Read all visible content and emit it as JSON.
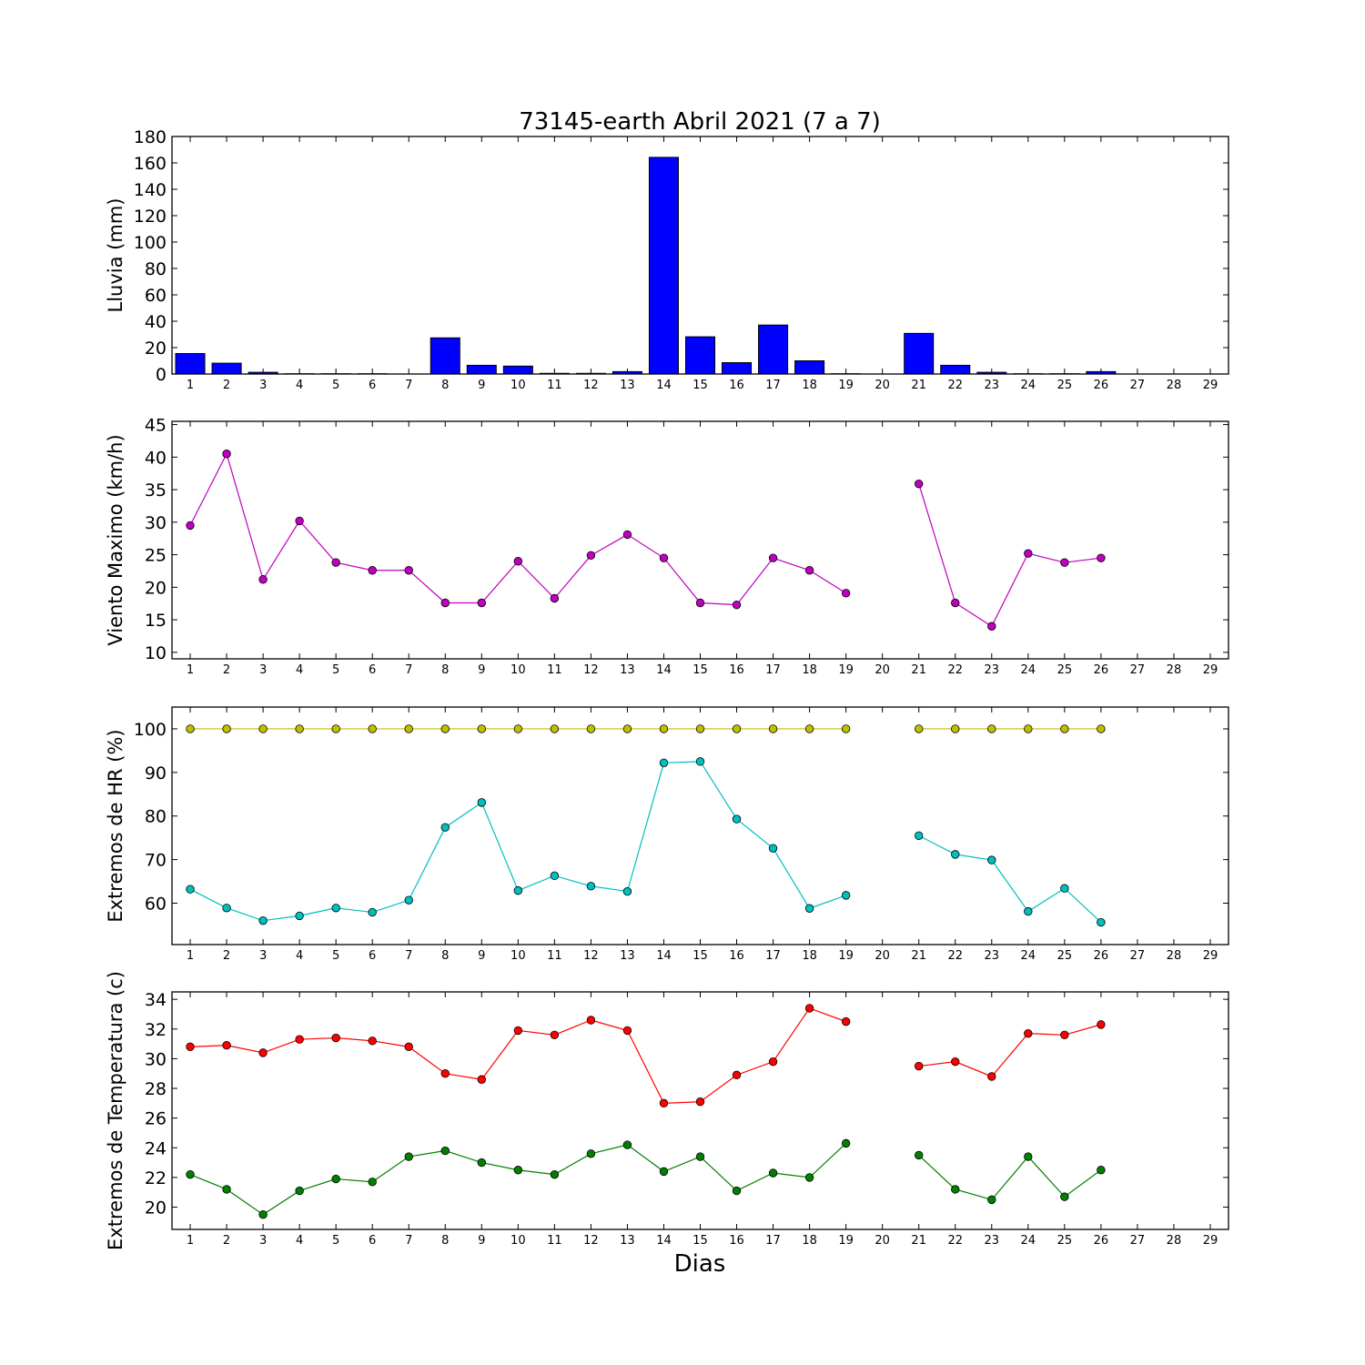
{
  "figure": {
    "title": "73145-earth Abril 2021  (7 a 7)",
    "xlabel": "Dias"
  },
  "chart_data": [
    {
      "type": "bar",
      "ylabel": "Lluvia (mm)",
      "ylim": [
        0,
        180
      ],
      "yticks": [
        0,
        20,
        40,
        60,
        80,
        100,
        120,
        140,
        160,
        180
      ],
      "xlim": [
        0.5,
        29.5
      ],
      "xticks": [
        1,
        2,
        3,
        4,
        5,
        6,
        7,
        8,
        9,
        10,
        11,
        12,
        13,
        14,
        15,
        16,
        17,
        18,
        19,
        20,
        21,
        22,
        23,
        24,
        25,
        26,
        27,
        28,
        29
      ],
      "color": "#0000ff",
      "x": [
        1,
        2,
        3,
        4,
        5,
        6,
        7,
        8,
        9,
        10,
        11,
        12,
        13,
        14,
        15,
        16,
        17,
        18,
        19,
        20,
        21,
        22,
        23,
        24,
        25,
        26,
        27,
        28,
        29
      ],
      "values": [
        15.5,
        8.2,
        1.3,
        0.2,
        0.2,
        0.2,
        0,
        27.4,
        6.6,
        6.0,
        0.5,
        0.5,
        1.8,
        164.2,
        28.2,
        8.6,
        37.1,
        10.0,
        0.2,
        0,
        30.8,
        6.6,
        1.3,
        0.2,
        0.2,
        1.8,
        0,
        0,
        0
      ],
      "grid": false
    },
    {
      "type": "line",
      "ylabel": "Viento Maximo (km/h)",
      "ylim": [
        9,
        45.5
      ],
      "yticks": [
        10,
        15,
        20,
        25,
        30,
        35,
        40,
        45
      ],
      "xlim": [
        0.5,
        29.5
      ],
      "xticks": [
        1,
        2,
        3,
        4,
        5,
        6,
        7,
        8,
        9,
        10,
        11,
        12,
        13,
        14,
        15,
        16,
        17,
        18,
        19,
        20,
        21,
        22,
        23,
        24,
        25,
        26,
        27,
        28,
        29
      ],
      "series": [
        {
          "color": "#bf00bf",
          "x": [
            1,
            2,
            3,
            4,
            5,
            6,
            7,
            8,
            9,
            10,
            11,
            12,
            13,
            14,
            15,
            16,
            17,
            18,
            19,
            20,
            21,
            22,
            23,
            24,
            25,
            26
          ],
          "values": [
            29.5,
            40.5,
            21.2,
            30.2,
            23.8,
            22.6,
            22.6,
            17.6,
            17.6,
            24.0,
            18.3,
            24.9,
            28.1,
            24.5,
            17.6,
            17.3,
            24.5,
            22.6,
            19.1,
            null,
            35.9,
            17.6,
            14.0,
            25.2,
            23.8,
            24.5
          ]
        }
      ],
      "grid": false
    },
    {
      "type": "line",
      "ylabel": "Extremos de HR (%)",
      "ylim": [
        50.5,
        105
      ],
      "yticks": [
        60,
        70,
        80,
        90,
        100
      ],
      "xlim": [
        0.5,
        29.5
      ],
      "xticks": [
        1,
        2,
        3,
        4,
        5,
        6,
        7,
        8,
        9,
        10,
        11,
        12,
        13,
        14,
        15,
        16,
        17,
        18,
        19,
        20,
        21,
        22,
        23,
        24,
        25,
        26,
        27,
        28,
        29
      ],
      "series": [
        {
          "color": "#bfbf00",
          "x": [
            1,
            2,
            3,
            4,
            5,
            6,
            7,
            8,
            9,
            10,
            11,
            12,
            13,
            14,
            15,
            16,
            17,
            18,
            19,
            20,
            21,
            22,
            23,
            24,
            25,
            26
          ],
          "values": [
            100,
            100,
            100,
            100,
            100,
            100,
            100,
            100,
            100,
            100,
            100,
            100,
            100,
            100,
            100,
            100,
            100,
            100,
            100,
            null,
            100,
            100,
            100,
            100,
            100,
            100
          ]
        },
        {
          "color": "#00bfbf",
          "x": [
            1,
            2,
            3,
            4,
            5,
            6,
            7,
            8,
            9,
            10,
            11,
            12,
            13,
            14,
            15,
            16,
            17,
            18,
            19,
            20,
            21,
            22,
            23,
            24,
            25,
            26
          ],
          "values": [
            63.2,
            58.9,
            56.0,
            57.1,
            58.9,
            57.9,
            60.7,
            77.4,
            83.1,
            62.9,
            66.3,
            63.9,
            62.7,
            92.2,
            92.5,
            79.3,
            72.6,
            58.8,
            61.8,
            null,
            75.5,
            71.2,
            69.9,
            58.1,
            63.4,
            55.6
          ]
        }
      ],
      "grid": false
    },
    {
      "type": "line",
      "ylabel": "Extremos de Temperatura (c)",
      "ylim": [
        18.5,
        34.5
      ],
      "yticks": [
        20,
        22,
        24,
        26,
        28,
        30,
        32,
        34
      ],
      "xlim": [
        0.5,
        29.5
      ],
      "xticks": [
        1,
        2,
        3,
        4,
        5,
        6,
        7,
        8,
        9,
        10,
        11,
        12,
        13,
        14,
        15,
        16,
        17,
        18,
        19,
        20,
        21,
        22,
        23,
        24,
        25,
        26,
        27,
        28,
        29
      ],
      "series": [
        {
          "color": "#ff0000",
          "x": [
            1,
            2,
            3,
            4,
            5,
            6,
            7,
            8,
            9,
            10,
            11,
            12,
            13,
            14,
            15,
            16,
            17,
            18,
            19,
            20,
            21,
            22,
            23,
            24,
            25,
            26
          ],
          "values": [
            30.8,
            30.9,
            30.4,
            31.3,
            31.4,
            31.2,
            30.8,
            29.0,
            28.6,
            31.9,
            31.6,
            32.6,
            31.9,
            27.0,
            27.1,
            28.9,
            29.8,
            33.4,
            32.5,
            null,
            29.5,
            29.8,
            28.8,
            31.7,
            31.6,
            32.3
          ]
        },
        {
          "color": "#008000",
          "x": [
            1,
            2,
            3,
            4,
            5,
            6,
            7,
            8,
            9,
            10,
            11,
            12,
            13,
            14,
            15,
            16,
            17,
            18,
            19,
            20,
            21,
            22,
            23,
            24,
            25,
            26
          ],
          "values": [
            22.2,
            21.2,
            19.5,
            21.1,
            21.9,
            21.7,
            23.4,
            23.8,
            23.0,
            22.5,
            22.2,
            23.6,
            24.2,
            22.4,
            23.4,
            21.1,
            22.3,
            22.0,
            24.3,
            null,
            23.5,
            21.2,
            20.5,
            23.4,
            20.7,
            22.5
          ]
        }
      ],
      "grid": false
    }
  ]
}
